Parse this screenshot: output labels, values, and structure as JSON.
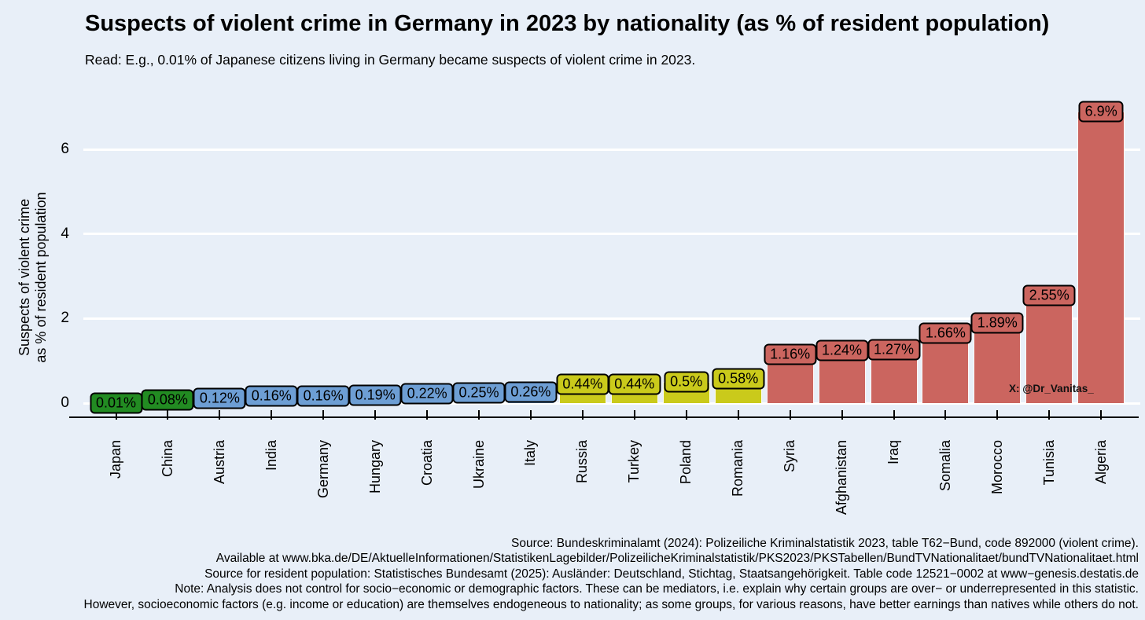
{
  "title": "Suspects of violent crime in Germany in 2023 by nationality (as % of resident population)",
  "subtitle": "Read: E.g., 0.01% of Japanese citizens living in Germany became suspects of violent crime in 2023.",
  "watermark": "X: @Dr_Vanitas_",
  "footer_lines": [
    "Source: Bundeskriminalamt (2024): Polizeiliche Kriminalstatistik 2023, table T62−Bund, code 892000 (violent crime).",
    "Available at www.bka.de/DE/AktuelleInformationen/StatistikenLagebilder/PolizeilicheKriminalstatistik/PKS2023/PKSTabellen/BundTVNationalitaet/bundTVNationalitaet.html",
    "Source for resident population: Statistisches Bundesamt (2025): Ausländer: Deutschland, Stichtag, Staatsangehörigkeit. Table code 12521−0002 at www−genesis.destatis.de",
    "Note: Analysis does not control for socio−economic or demographic factors. These can be mediators, i.e. explain why certain groups are over− or underrepresented in this statistic.",
    "However, socioeconomic factors (e.g. income or education) are themselves endogeneous to nationality; as some groups, for various reasons, have better earnings than natives while others do not."
  ],
  "chart_data": {
    "type": "bar",
    "title": "Suspects of violent crime in Germany in 2023 by nationality (as % of resident population)",
    "xlabel": "",
    "ylabel": "Suspects of violent crime as % of resident population",
    "ylabel_lines": [
      "Suspects of violent crime",
      "as % of resident population"
    ],
    "ylim": [
      0,
      7.2
    ],
    "yticks": [
      0,
      2,
      4,
      6
    ],
    "grid": true,
    "legend": "none",
    "categories": [
      "Japan",
      "China",
      "Austria",
      "India",
      "Germany",
      "Hungary",
      "Croatia",
      "Ukraine",
      "Italy",
      "Russia",
      "Turkey",
      "Poland",
      "Romania",
      "Syria",
      "Afghanistan",
      "Iraq",
      "Somalia",
      "Morocco",
      "Tunisia",
      "Algeria"
    ],
    "values": [
      0.01,
      0.08,
      0.12,
      0.16,
      0.16,
      0.19,
      0.22,
      0.25,
      0.26,
      0.44,
      0.44,
      0.5,
      0.58,
      1.16,
      1.24,
      1.27,
      1.66,
      1.89,
      2.55,
      6.9
    ],
    "labels": [
      "0.01%",
      "0.08%",
      "0.12%",
      "0.16%",
      "0.16%",
      "0.19%",
      "0.22%",
      "0.25%",
      "0.26%",
      "0.44%",
      "0.44%",
      "0.5%",
      "0.58%",
      "1.16%",
      "1.24%",
      "1.27%",
      "1.66%",
      "1.89%",
      "2.55%",
      "6.9%"
    ],
    "groups": [
      "green",
      "green",
      "blue",
      "blue",
      "blue",
      "blue",
      "blue",
      "blue",
      "blue",
      "yellow",
      "yellow",
      "yellow",
      "yellow",
      "red",
      "red",
      "red",
      "red",
      "red",
      "red",
      "red"
    ],
    "palette": {
      "green": "#228B22",
      "blue": "#6D9ED4",
      "yellow": "#CACA1B",
      "red": "#CB655F"
    },
    "colors": {
      "background": "#E8EFF8",
      "gridline": "#FFFFFF",
      "axis": "#000000",
      "label_border": "#000000"
    }
  }
}
